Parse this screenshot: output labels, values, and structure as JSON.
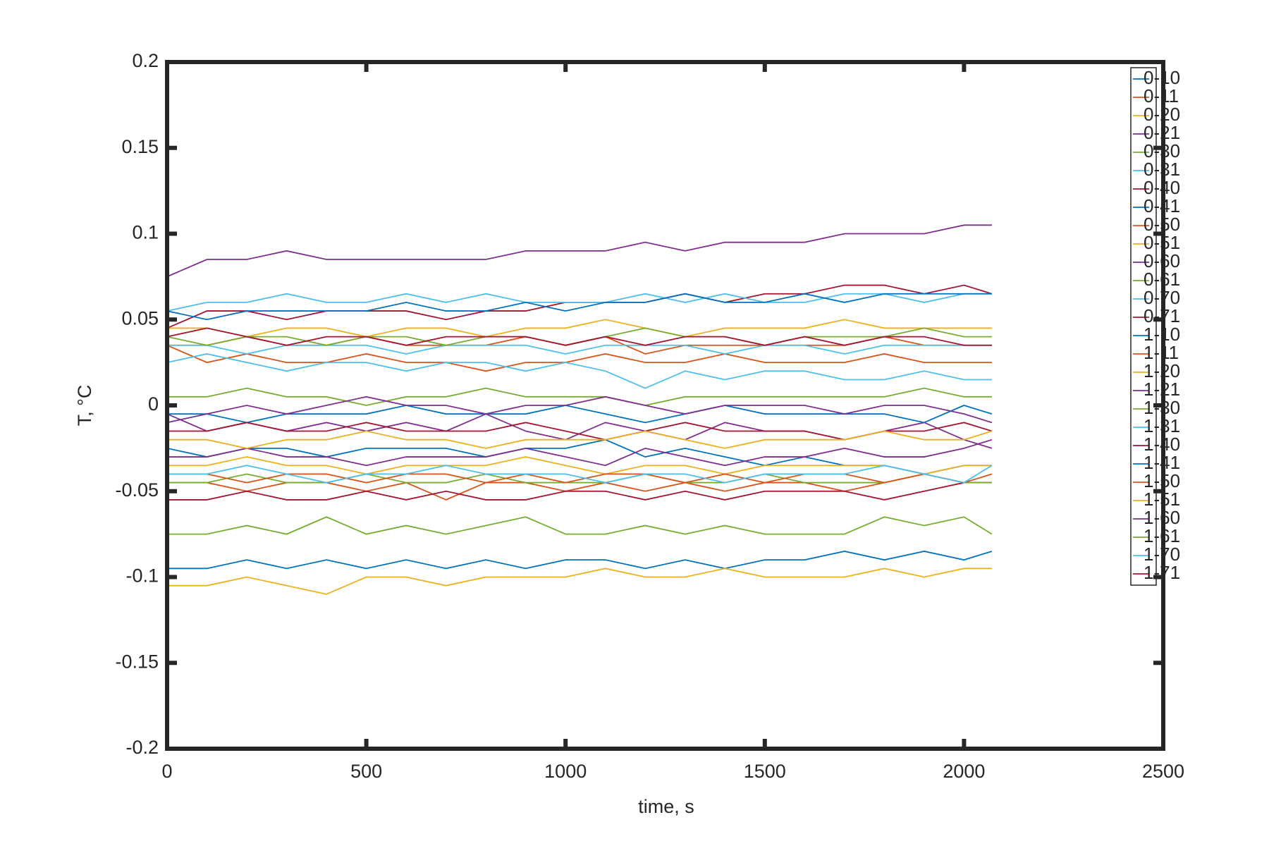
{
  "chart_data": {
    "type": "line",
    "xlabel": "time, s",
    "ylabel": "T, °C",
    "xlim": [
      0,
      2500
    ],
    "ylim": [
      -0.2,
      0.2
    ],
    "xticks": [
      0,
      500,
      1000,
      1500,
      2000,
      2500
    ],
    "yticks": [
      -0.2,
      -0.15,
      -0.1,
      -0.05,
      0,
      0.05,
      0.1,
      0.15,
      0.2
    ],
    "legend": "east",
    "x": [
      0,
      100,
      200,
      300,
      400,
      500,
      600,
      700,
      800,
      900,
      1000,
      1100,
      1200,
      1300,
      1400,
      1500,
      1600,
      1700,
      1800,
      1900,
      2000,
      2070
    ],
    "series": [
      {
        "name": "0-10",
        "color": "#0072BD",
        "values": [
          -0.095,
          -0.095,
          -0.09,
          -0.095,
          -0.09,
          -0.095,
          -0.09,
          -0.095,
          -0.09,
          -0.095,
          -0.09,
          -0.09,
          -0.095,
          -0.09,
          -0.095,
          -0.09,
          -0.09,
          -0.085,
          -0.09,
          -0.085,
          -0.09,
          -0.085
        ]
      },
      {
        "name": "0-11",
        "color": "#D95319",
        "values": [
          0.035,
          0.025,
          0.03,
          0.025,
          0.025,
          0.03,
          0.025,
          0.025,
          0.02,
          0.025,
          0.025,
          0.03,
          0.025,
          0.025,
          0.03,
          0.025,
          0.025,
          0.025,
          0.03,
          0.025,
          0.025,
          0.025
        ]
      },
      {
        "name": "0-20",
        "color": "#EDB120",
        "values": [
          -0.105,
          -0.105,
          -0.1,
          -0.105,
          -0.11,
          -0.1,
          -0.1,
          -0.105,
          -0.1,
          -0.1,
          -0.1,
          -0.095,
          -0.1,
          -0.1,
          -0.095,
          -0.1,
          -0.1,
          -0.1,
          -0.095,
          -0.1,
          -0.095,
          -0.095
        ]
      },
      {
        "name": "0-21",
        "color": "#7E2F8E",
        "values": [
          -0.005,
          -0.015,
          -0.01,
          -0.015,
          -0.01,
          -0.015,
          -0.01,
          -0.015,
          -0.005,
          -0.015,
          -0.02,
          -0.01,
          -0.015,
          -0.02,
          -0.01,
          -0.015,
          -0.015,
          -0.02,
          -0.015,
          -0.01,
          -0.02,
          -0.025
        ]
      },
      {
        "name": "0-30",
        "color": "#77AC30",
        "values": [
          -0.075,
          -0.075,
          -0.07,
          -0.075,
          -0.065,
          -0.075,
          -0.07,
          -0.075,
          -0.07,
          -0.065,
          -0.075,
          -0.075,
          -0.07,
          -0.075,
          -0.07,
          -0.075,
          -0.075,
          -0.075,
          -0.065,
          -0.07,
          -0.065,
          -0.075
        ]
      },
      {
        "name": "0-31",
        "color": "#4DBEEE",
        "values": [
          0.025,
          0.03,
          0.025,
          0.02,
          0.025,
          0.025,
          0.02,
          0.025,
          0.025,
          0.02,
          0.025,
          0.02,
          0.01,
          0.02,
          0.015,
          0.02,
          0.02,
          0.015,
          0.015,
          0.02,
          0.015,
          0.015
        ]
      },
      {
        "name": "0-40",
        "color": "#A2142F",
        "values": [
          0.045,
          0.055,
          0.055,
          0.05,
          0.055,
          0.055,
          0.055,
          0.05,
          0.055,
          0.055,
          0.06,
          0.06,
          0.06,
          0.065,
          0.06,
          0.065,
          0.065,
          0.07,
          0.07,
          0.065,
          0.07,
          0.065
        ]
      },
      {
        "name": "0-41",
        "color": "#0072BD",
        "values": [
          -0.005,
          -0.005,
          -0.01,
          -0.005,
          -0.005,
          -0.005,
          0,
          -0.005,
          -0.005,
          -0.005,
          0,
          -0.005,
          -0.01,
          -0.005,
          0,
          -0.005,
          -0.005,
          -0.005,
          -0.005,
          -0.01,
          0,
          -0.005
        ]
      },
      {
        "name": "0-50",
        "color": "#D95319",
        "values": [
          -0.045,
          -0.045,
          -0.05,
          -0.045,
          -0.045,
          -0.05,
          -0.045,
          -0.055,
          -0.045,
          -0.045,
          -0.05,
          -0.045,
          -0.05,
          -0.045,
          -0.05,
          -0.045,
          -0.045,
          -0.05,
          -0.045,
          -0.04,
          -0.045,
          -0.045
        ]
      },
      {
        "name": "0-51",
        "color": "#EDB120",
        "values": [
          0.045,
          0.045,
          0.04,
          0.045,
          0.045,
          0.04,
          0.045,
          0.045,
          0.04,
          0.045,
          0.045,
          0.05,
          0.045,
          0.04,
          0.045,
          0.045,
          0.045,
          0.05,
          0.045,
          0.045,
          0.045,
          0.045
        ]
      },
      {
        "name": "0-60",
        "color": "#7E2F8E",
        "values": [
          0.075,
          0.085,
          0.085,
          0.09,
          0.085,
          0.085,
          0.085,
          0.085,
          0.085,
          0.09,
          0.09,
          0.09,
          0.095,
          0.09,
          0.095,
          0.095,
          0.095,
          0.1,
          0.1,
          0.1,
          0.105,
          0.105
        ]
      },
      {
        "name": "0-61",
        "color": "#77AC30",
        "values": [
          0.005,
          0.005,
          0.01,
          0.005,
          0.005,
          0,
          0.005,
          0.005,
          0.01,
          0.005,
          0.005,
          0.005,
          0,
          0.005,
          0.005,
          0.005,
          0.005,
          0.005,
          0.005,
          0.01,
          0.005,
          0.005
        ]
      },
      {
        "name": "0-70",
        "color": "#4DBEEE",
        "values": [
          0.055,
          0.06,
          0.06,
          0.065,
          0.06,
          0.06,
          0.065,
          0.06,
          0.065,
          0.06,
          0.06,
          0.06,
          0.065,
          0.06,
          0.065,
          0.06,
          0.06,
          0.065,
          0.065,
          0.06,
          0.065,
          0.065
        ]
      },
      {
        "name": "0-71",
        "color": "#A2142F",
        "values": [
          -0.055,
          -0.055,
          -0.05,
          -0.055,
          -0.055,
          -0.05,
          -0.055,
          -0.05,
          -0.055,
          -0.055,
          -0.05,
          -0.05,
          -0.055,
          -0.05,
          -0.055,
          -0.05,
          -0.05,
          -0.05,
          -0.055,
          -0.05,
          -0.045,
          -0.045
        ]
      },
      {
        "name": "1-10",
        "color": "#0072BD",
        "values": [
          -0.025,
          -0.03,
          -0.025,
          -0.025,
          -0.03,
          -0.025,
          -0.025,
          -0.025,
          -0.03,
          -0.025,
          -0.025,
          -0.02,
          -0.03,
          -0.025,
          -0.03,
          -0.035,
          -0.03,
          -0.035,
          -0.035,
          -0.04,
          -0.035,
          -0.035
        ]
      },
      {
        "name": "1-11",
        "color": "#D95319",
        "values": [
          0.035,
          0.035,
          0.04,
          0.035,
          0.035,
          0.04,
          0.035,
          0.035,
          0.035,
          0.04,
          0.035,
          0.04,
          0.03,
          0.035,
          0.035,
          0.035,
          0.035,
          0.035,
          0.04,
          0.035,
          0.035,
          0.035
        ]
      },
      {
        "name": "1-20",
        "color": "#EDB120",
        "values": [
          -0.035,
          -0.035,
          -0.03,
          -0.035,
          -0.035,
          -0.04,
          -0.035,
          -0.035,
          -0.035,
          -0.03,
          -0.035,
          -0.04,
          -0.035,
          -0.035,
          -0.04,
          -0.035,
          -0.035,
          -0.035,
          -0.035,
          -0.04,
          -0.035,
          -0.035
        ]
      },
      {
        "name": "1-21",
        "color": "#7E2F8E",
        "values": [
          -0.03,
          -0.03,
          -0.025,
          -0.03,
          -0.03,
          -0.035,
          -0.03,
          -0.03,
          -0.03,
          -0.025,
          -0.03,
          -0.035,
          -0.025,
          -0.03,
          -0.035,
          -0.03,
          -0.03,
          -0.025,
          -0.03,
          -0.03,
          -0.025,
          -0.02
        ]
      },
      {
        "name": "1-30",
        "color": "#77AC30",
        "values": [
          -0.045,
          -0.045,
          -0.04,
          -0.045,
          -0.045,
          -0.04,
          -0.045,
          -0.045,
          -0.04,
          -0.045,
          -0.045,
          -0.045,
          -0.04,
          -0.045,
          -0.045,
          -0.04,
          -0.045,
          -0.045,
          -0.045,
          -0.04,
          -0.045,
          -0.045
        ]
      },
      {
        "name": "1-31",
        "color": "#4DBEEE",
        "values": [
          0.035,
          0.035,
          0.03,
          0.035,
          0.035,
          0.035,
          0.03,
          0.035,
          0.035,
          0.035,
          0.03,
          0.035,
          0.035,
          0.035,
          0.03,
          0.035,
          0.035,
          0.03,
          0.035,
          0.035,
          0.035,
          0.035
        ]
      },
      {
        "name": "1-40",
        "color": "#A2142F",
        "values": [
          -0.015,
          -0.015,
          -0.01,
          -0.015,
          -0.015,
          -0.01,
          -0.015,
          -0.015,
          -0.015,
          -0.01,
          -0.015,
          -0.02,
          -0.015,
          -0.01,
          -0.015,
          -0.015,
          -0.015,
          -0.02,
          -0.015,
          -0.015,
          -0.01,
          -0.015
        ]
      },
      {
        "name": "1-41",
        "color": "#0072BD",
        "values": [
          0.055,
          0.05,
          0.055,
          0.055,
          0.055,
          0.055,
          0.06,
          0.055,
          0.055,
          0.06,
          0.055,
          0.06,
          0.06,
          0.065,
          0.06,
          0.06,
          0.065,
          0.06,
          0.065,
          0.065,
          0.065,
          0.065
        ]
      },
      {
        "name": "1-50",
        "color": "#D95319",
        "values": [
          -0.04,
          -0.04,
          -0.045,
          -0.04,
          -0.04,
          -0.045,
          -0.04,
          -0.04,
          -0.045,
          -0.04,
          -0.045,
          -0.04,
          -0.04,
          -0.045,
          -0.04,
          -0.045,
          -0.04,
          -0.04,
          -0.045,
          -0.04,
          -0.045,
          -0.04
        ]
      },
      {
        "name": "1-51",
        "color": "#EDB120",
        "values": [
          -0.02,
          -0.02,
          -0.025,
          -0.02,
          -0.02,
          -0.015,
          -0.02,
          -0.02,
          -0.025,
          -0.02,
          -0.02,
          -0.02,
          -0.015,
          -0.02,
          -0.025,
          -0.02,
          -0.02,
          -0.02,
          -0.015,
          -0.02,
          -0.02,
          -0.015
        ]
      },
      {
        "name": "1-60",
        "color": "#7E2F8E",
        "values": [
          -0.01,
          -0.005,
          0,
          -0.005,
          0,
          0.005,
          0,
          0,
          -0.005,
          0,
          0,
          0.005,
          0,
          -0.005,
          0,
          0,
          0,
          -0.005,
          0,
          0,
          -0.005,
          -0.01
        ]
      },
      {
        "name": "1-61",
        "color": "#77AC30",
        "values": [
          0.04,
          0.035,
          0.04,
          0.04,
          0.035,
          0.04,
          0.04,
          0.035,
          0.04,
          0.04,
          0.035,
          0.04,
          0.045,
          0.04,
          0.04,
          0.035,
          0.04,
          0.04,
          0.04,
          0.045,
          0.04,
          0.04
        ]
      },
      {
        "name": "1-70",
        "color": "#4DBEEE",
        "values": [
          -0.04,
          -0.04,
          -0.035,
          -0.04,
          -0.045,
          -0.04,
          -0.04,
          -0.035,
          -0.04,
          -0.04,
          -0.04,
          -0.045,
          -0.04,
          -0.04,
          -0.045,
          -0.04,
          -0.04,
          -0.04,
          -0.035,
          -0.04,
          -0.045,
          -0.035
        ]
      },
      {
        "name": "1-71",
        "color": "#A2142F",
        "values": [
          0.04,
          0.045,
          0.04,
          0.035,
          0.04,
          0.04,
          0.035,
          0.04,
          0.04,
          0.04,
          0.035,
          0.04,
          0.035,
          0.04,
          0.04,
          0.035,
          0.04,
          0.035,
          0.04,
          0.04,
          0.035,
          0.035
        ]
      }
    ]
  }
}
